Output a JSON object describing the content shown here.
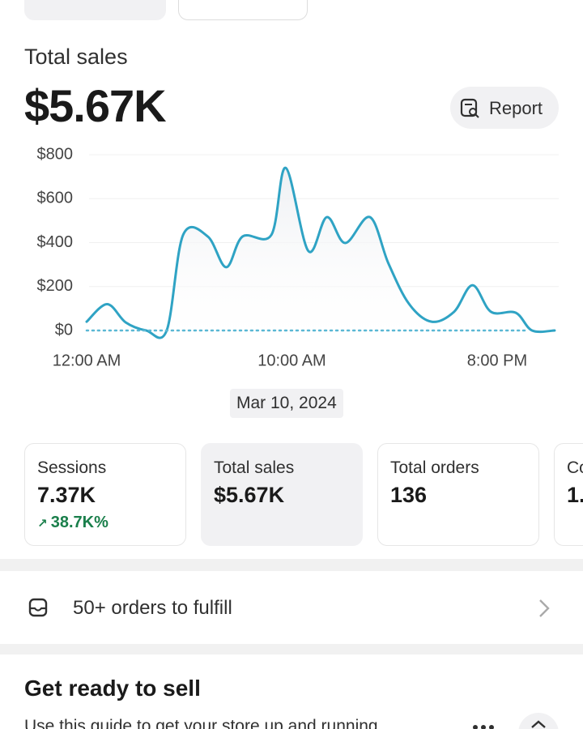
{
  "header": {
    "title": "Total sales",
    "value": "$5.67K",
    "report_button": "Report"
  },
  "chart_data": {
    "type": "line",
    "x": [
      0,
      1,
      1.9,
      2.9,
      3.9,
      4.7,
      5.9,
      6.8,
      7.6,
      9,
      9.7,
      10.8,
      11.7,
      12.6,
      13.8,
      14.7,
      15.7,
      16.8,
      17.9,
      18.8,
      19.7,
      20.9,
      21.7,
      22.8
    ],
    "series": [
      {
        "color": "#2fa3c4",
        "values": [
          40,
          120,
          37,
          0,
          0,
          435,
          428,
          288,
          428,
          435,
          740,
          362,
          516,
          398,
          516,
          306,
          122,
          40,
          85,
          206,
          85,
          81,
          0,
          0
        ]
      },
      {
        "color": "#5bb8d4",
        "dotted": true,
        "x": [
          0,
          21.5
        ],
        "values": [
          0,
          0
        ]
      }
    ],
    "xlim": [
      0,
      23
    ],
    "xticks": [
      {
        "value": 0,
        "label": "12:00 AM"
      },
      {
        "value": 10,
        "label": "10:00 AM"
      },
      {
        "value": 20,
        "label": "8:00 PM"
      }
    ],
    "ylim": [
      0,
      800
    ],
    "yticks": [
      {
        "value": 0,
        "label": "$0"
      },
      {
        "value": 200,
        "label": "$200"
      },
      {
        "value": 400,
        "label": "$400"
      },
      {
        "value": 600,
        "label": "$600"
      },
      {
        "value": 800,
        "label": "$800"
      }
    ],
    "grid": true,
    "date_label": "Mar 10, 2024"
  },
  "metrics": [
    {
      "label": "Sessions",
      "value": "7.37K",
      "change": "38.7K%"
    },
    {
      "label": "Total sales",
      "value": "$5.67K"
    },
    {
      "label": "Total orders",
      "value": "136"
    },
    {
      "label": "Co",
      "value": "1."
    }
  ],
  "fulfill": {
    "text": "50+ orders to fulfill"
  },
  "setup": {
    "title": "Get ready to sell",
    "text": "Use this guide to get your store up and running"
  }
}
